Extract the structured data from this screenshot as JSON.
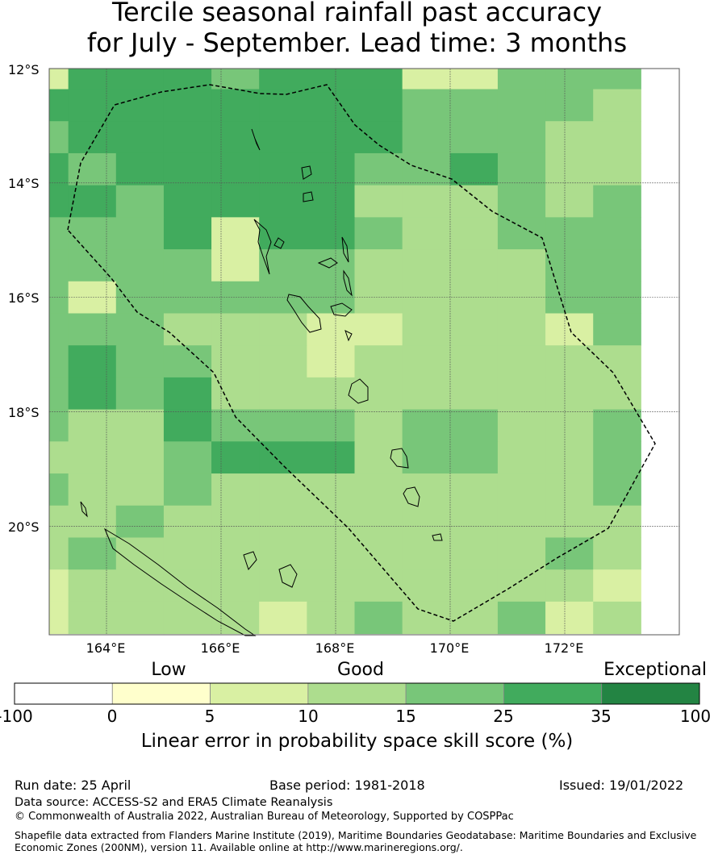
{
  "title": {
    "line1": "Tercile seasonal rainfall past accuracy",
    "line2": "for July - September. Lead time: 3 months"
  },
  "map": {
    "lat_labels": [
      "12°S",
      "14°S",
      "16°S",
      "18°S",
      "20°S"
    ],
    "lon_labels": [
      "164°E",
      "166°E",
      "168°E",
      "170°E",
      "172°E"
    ],
    "lon_range": [
      163,
      174
    ],
    "lat_range": [
      -21.9,
      -12
    ],
    "grid_cell_deg": 0.833,
    "skill_grid": [
      [
        5,
        25,
        25,
        25,
        15,
        25,
        25,
        25,
        5,
        5,
        15,
        15,
        15
      ],
      [
        25,
        25,
        25,
        25,
        25,
        25,
        25,
        25,
        15,
        15,
        15,
        15,
        10
      ],
      [
        15,
        25,
        25,
        25,
        25,
        25,
        25,
        25,
        15,
        15,
        15,
        10,
        10
      ],
      [
        25,
        15,
        25,
        25,
        25,
        25,
        25,
        15,
        15,
        25,
        15,
        10,
        10
      ],
      [
        25,
        25,
        15,
        25,
        25,
        25,
        25,
        10,
        10,
        10,
        15,
        10,
        15
      ],
      [
        15,
        15,
        15,
        25,
        5,
        25,
        25,
        15,
        10,
        10,
        15,
        15,
        15
      ],
      [
        15,
        15,
        15,
        15,
        5,
        15,
        15,
        10,
        10,
        10,
        10,
        15,
        15
      ],
      [
        15,
        5,
        15,
        15,
        15,
        15,
        15,
        10,
        10,
        10,
        10,
        15,
        15
      ],
      [
        15,
        15,
        15,
        10,
        10,
        10,
        5,
        5,
        10,
        10,
        10,
        5,
        15
      ],
      [
        15,
        25,
        15,
        15,
        10,
        10,
        5,
        10,
        10,
        10,
        10,
        10,
        10
      ],
      [
        15,
        25,
        15,
        25,
        10,
        10,
        10,
        10,
        10,
        10,
        10,
        10,
        10
      ],
      [
        15,
        10,
        10,
        25,
        15,
        15,
        15,
        10,
        15,
        15,
        10,
        10,
        15
      ],
      [
        10,
        10,
        10,
        15,
        25,
        25,
        25,
        10,
        15,
        15,
        10,
        10,
        15
      ],
      [
        15,
        10,
        10,
        15,
        10,
        10,
        10,
        10,
        10,
        10,
        10,
        10,
        15
      ],
      [
        10,
        10,
        15,
        10,
        10,
        10,
        10,
        10,
        10,
        10,
        10,
        10,
        10
      ],
      [
        10,
        15,
        10,
        10,
        10,
        10,
        10,
        10,
        10,
        10,
        10,
        15,
        10
      ],
      [
        5,
        10,
        10,
        10,
        10,
        10,
        10,
        10,
        10,
        10,
        10,
        10,
        5
      ],
      [
        5,
        10,
        10,
        10,
        10,
        5,
        10,
        15,
        10,
        10,
        15,
        5,
        10
      ]
    ]
  },
  "colorbar": {
    "category_labels": [
      "Low",
      "Good",
      "Exceptional"
    ],
    "tick_labels": [
      "-100",
      "0",
      "5",
      "10",
      "15",
      "25",
      "35",
      "100"
    ],
    "colors": [
      "#ffffff",
      "#ffffcc",
      "#d9f0a3",
      "#addd8e",
      "#78c679",
      "#41ab5d",
      "#238443"
    ],
    "title": "Linear error in probability space skill score (%)"
  },
  "footer": {
    "run_date": "Run date: 25 April",
    "base_period": "Base period: 1981-2018",
    "issued": "Issued: 19/01/2022",
    "data_source": "Data source: ACCESS-S2 and ERA5 Climate Reanalysis",
    "copyright": "© Commonwealth of Australia 2022, Australian Bureau of Meteorology, Supported by COSPPac",
    "shapefile_line1": "Shapefile data extracted from Flanders Marine Institute (2019), Maritime Boundaries Geodatabase: Maritime Boundaries and Exclusive",
    "shapefile_line2": "Economic Zones (200NM), version 11. Available online at http://www.marineregions.org/."
  }
}
